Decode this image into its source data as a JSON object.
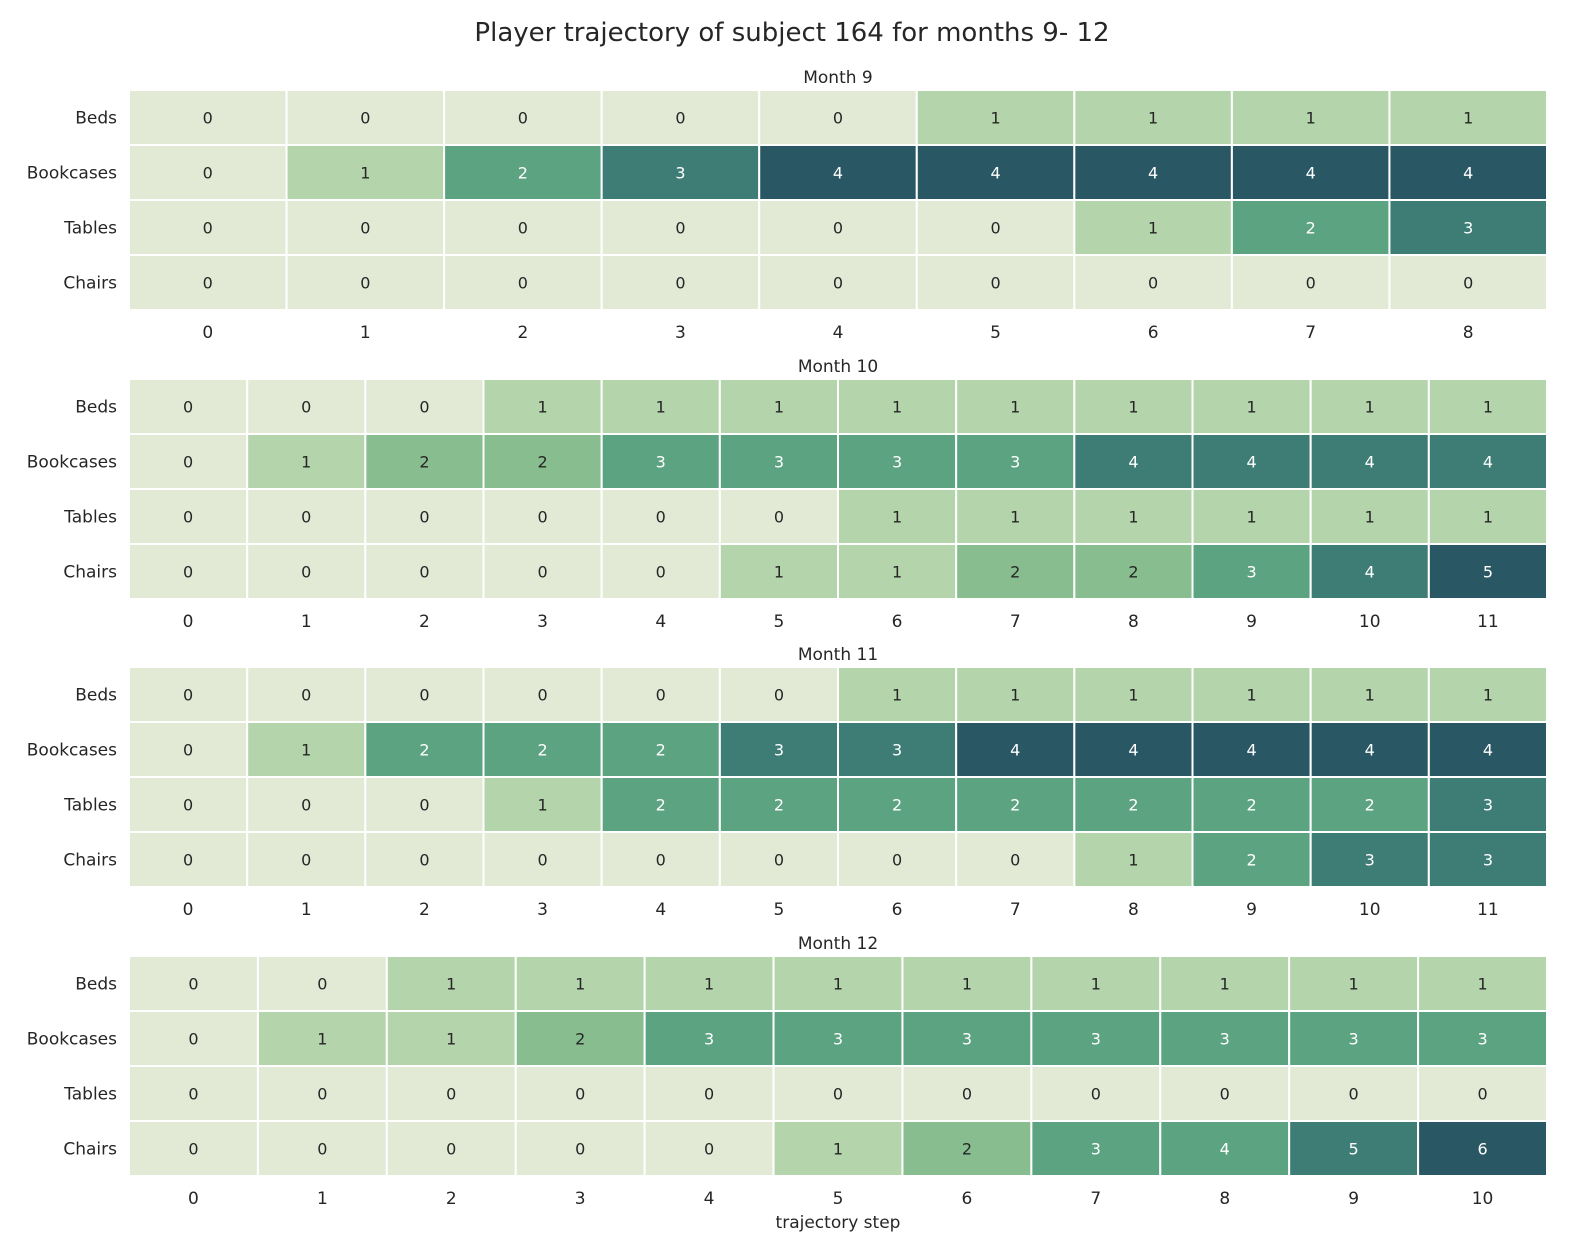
{
  "figure": {
    "title": "Player trajectory of subject 164 for months 9- 12"
  },
  "chart_data": [
    {
      "type": "heatmap",
      "title": "Month 9",
      "rows": [
        "Beds",
        "Bookcases",
        "Tables",
        "Chairs"
      ],
      "x": [
        0,
        1,
        2,
        3,
        4,
        5,
        6,
        7,
        8
      ],
      "values": [
        [
          0,
          0,
          0,
          0,
          0,
          1,
          1,
          1,
          1
        ],
        [
          0,
          1,
          2,
          3,
          4,
          4,
          4,
          4,
          4
        ],
        [
          0,
          0,
          0,
          0,
          0,
          0,
          1,
          2,
          3
        ],
        [
          0,
          0,
          0,
          0,
          0,
          0,
          0,
          0,
          0
        ]
      ],
      "xlabel": ""
    },
    {
      "type": "heatmap",
      "title": "Month 10",
      "rows": [
        "Beds",
        "Bookcases",
        "Tables",
        "Chairs"
      ],
      "x": [
        0,
        1,
        2,
        3,
        4,
        5,
        6,
        7,
        8,
        9,
        10,
        11
      ],
      "values": [
        [
          0,
          0,
          0,
          1,
          1,
          1,
          1,
          1,
          1,
          1,
          1,
          1
        ],
        [
          0,
          1,
          2,
          2,
          3,
          3,
          3,
          3,
          4,
          4,
          4,
          4
        ],
        [
          0,
          0,
          0,
          0,
          0,
          0,
          1,
          1,
          1,
          1,
          1,
          1
        ],
        [
          0,
          0,
          0,
          0,
          0,
          1,
          1,
          2,
          2,
          3,
          4,
          5
        ]
      ],
      "xlabel": ""
    },
    {
      "type": "heatmap",
      "title": "Month 11",
      "rows": [
        "Beds",
        "Bookcases",
        "Tables",
        "Chairs"
      ],
      "x": [
        0,
        1,
        2,
        3,
        4,
        5,
        6,
        7,
        8,
        9,
        10,
        11
      ],
      "values": [
        [
          0,
          0,
          0,
          0,
          0,
          0,
          1,
          1,
          1,
          1,
          1,
          1
        ],
        [
          0,
          1,
          2,
          2,
          2,
          3,
          3,
          4,
          4,
          4,
          4,
          4
        ],
        [
          0,
          0,
          0,
          1,
          2,
          2,
          2,
          2,
          2,
          2,
          2,
          3
        ],
        [
          0,
          0,
          0,
          0,
          0,
          0,
          0,
          0,
          1,
          2,
          3,
          3
        ]
      ],
      "xlabel": ""
    },
    {
      "type": "heatmap",
      "title": "Month 12",
      "rows": [
        "Beds",
        "Bookcases",
        "Tables",
        "Chairs"
      ],
      "x": [
        0,
        1,
        2,
        3,
        4,
        5,
        6,
        7,
        8,
        9,
        10
      ],
      "values": [
        [
          0,
          0,
          1,
          1,
          1,
          1,
          1,
          1,
          1,
          1,
          1
        ],
        [
          0,
          1,
          1,
          2,
          3,
          3,
          3,
          3,
          3,
          3,
          3
        ],
        [
          0,
          0,
          0,
          0,
          0,
          0,
          0,
          0,
          0,
          0,
          0
        ],
        [
          0,
          0,
          0,
          0,
          0,
          1,
          2,
          3,
          4,
          5,
          6
        ]
      ],
      "xlabel": "trajectory step"
    }
  ]
}
